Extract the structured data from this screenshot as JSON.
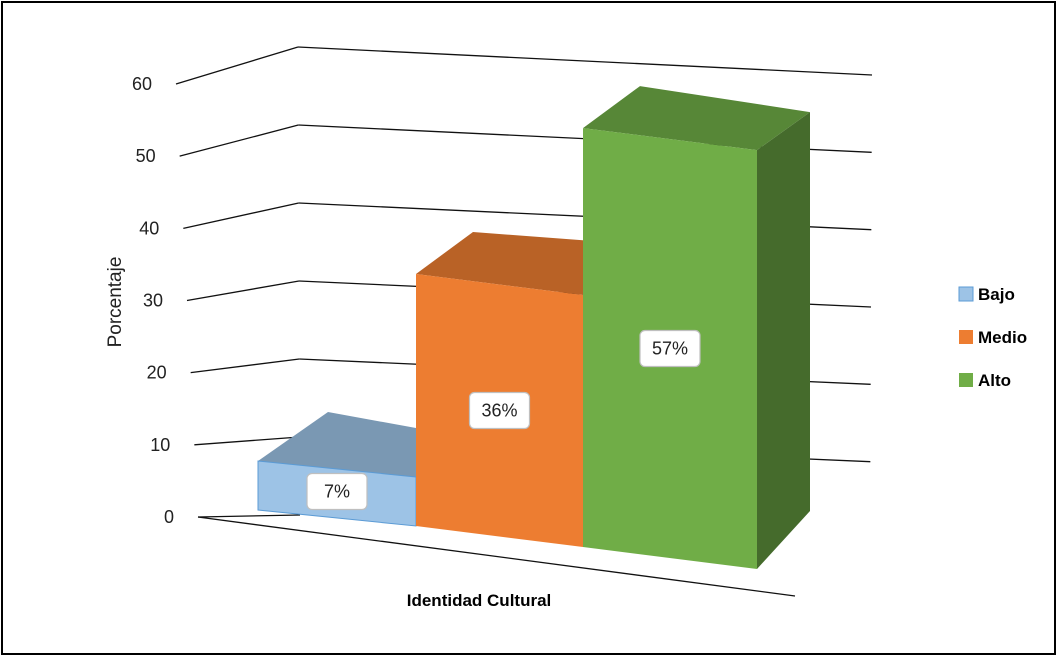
{
  "chart_data": {
    "type": "bar",
    "categories": [
      "Identidad Cultural"
    ],
    "xlabel": "Identidad Cultural",
    "ylabel": "Porcentaje",
    "ylim": [
      0,
      60
    ],
    "yticks": [
      "0",
      "10",
      "20",
      "30",
      "40",
      "50",
      "60"
    ],
    "grid": true,
    "legend_position": "right",
    "series": [
      {
        "name": "Bajo",
        "value": 7,
        "label": "7%",
        "color": "#9DC3E6"
      },
      {
        "name": "Medio",
        "value": 36,
        "label": "36%",
        "color": "#ED7D31"
      },
      {
        "name": "Alto",
        "value": 57,
        "label": "57%",
        "color": "#70AD47"
      }
    ]
  }
}
